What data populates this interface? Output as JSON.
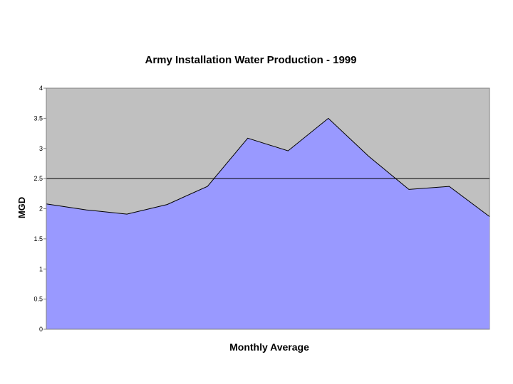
{
  "chart_data": {
    "type": "area",
    "title": "Army Installation Water Production - 1999",
    "xlabel": "Monthly Average",
    "ylabel": "MGD",
    "ylim": [
      0,
      4
    ],
    "y_ticks": [
      {
        "value": 0,
        "label": "0"
      },
      {
        "value": 0.5,
        "label": "0.5"
      },
      {
        "value": 1,
        "label": "1"
      },
      {
        "value": 1.5,
        "label": "1.5"
      },
      {
        "value": 2,
        "label": "2"
      },
      {
        "value": 2.5,
        "label": "2.5"
      },
      {
        "value": 3,
        "label": "3"
      },
      {
        "value": 3.5,
        "label": "3.5"
      },
      {
        "value": 4,
        "label": "4"
      }
    ],
    "series": [
      {
        "name": "Monthly Average",
        "values": [
          2.08,
          1.98,
          1.91,
          2.07,
          2.37,
          3.17,
          2.96,
          3.5,
          2.87,
          2.32,
          2.37,
          1.87
        ]
      }
    ],
    "reference_line": {
      "value": 2.5
    },
    "grid": false,
    "legend": "none",
    "colors": {
      "plot_background": "#c0c0c0",
      "area_fill": "#9999ff",
      "series_line": "#000000",
      "axis": "#808080",
      "reference_line": "#000000",
      "text": "#000000"
    }
  }
}
